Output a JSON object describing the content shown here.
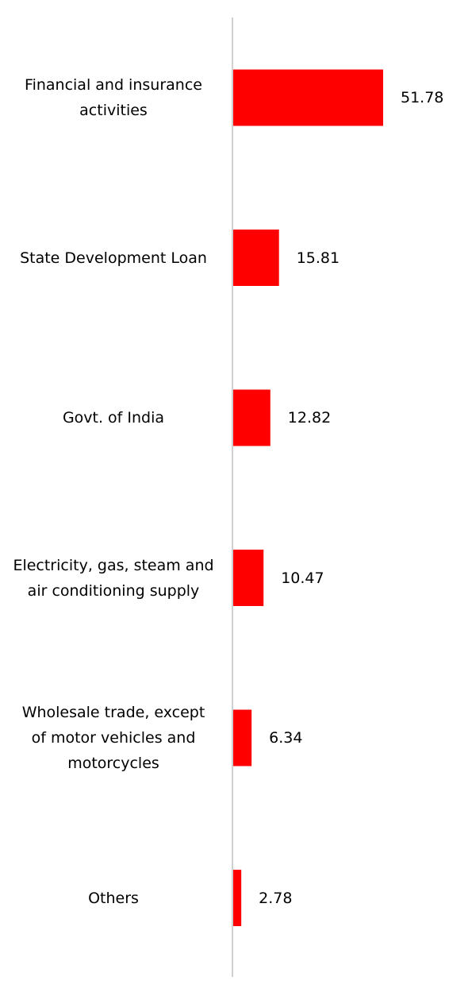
{
  "colors": {
    "bar": "#ff0000",
    "axis": "#d0d0d0",
    "text": "#000000",
    "background": "#ffffff"
  },
  "chart_data": {
    "type": "bar",
    "orientation": "horizontal",
    "categories": [
      "Financial and insurance\nactivities",
      "State Development Loan",
      "Govt. of India",
      "Electricity, gas, steam and\nair conditioning supply",
      "Wholesale trade, except\nof motor vehicles and\nmotorcycles",
      "Others"
    ],
    "values": [
      51.78,
      15.81,
      12.82,
      10.47,
      6.34,
      2.78
    ],
    "data_labels": [
      "51.78",
      "15.81",
      "12.82",
      "10.47",
      "6.34",
      "2.78"
    ],
    "xlim": [
      0,
      51.78
    ],
    "grid": false,
    "legend": "none"
  }
}
